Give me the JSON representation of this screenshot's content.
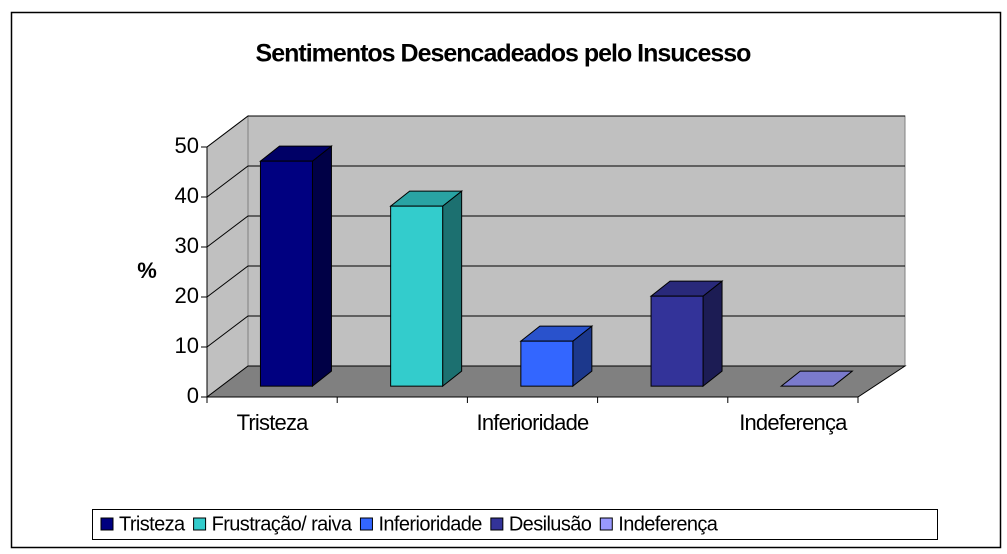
{
  "chart_data": {
    "type": "bar3d",
    "title": "Sentimentos Desencadeados pelo Insucesso",
    "y_label": "%",
    "categories": [
      "Tristeza",
      null,
      "Inferioridade",
      null,
      "Indeferença"
    ],
    "legend": [
      "Tristeza",
      "Frustração/ raiva",
      "Inferioridade",
      "Desilusão",
      "Indeferença"
    ],
    "values": [
      45,
      36,
      9,
      18,
      0
    ],
    "colors": [
      "#000080",
      "#33cccc",
      "#3366ff",
      "#333399",
      "#9999ff"
    ],
    "ylim": [
      0,
      50
    ],
    "yticks": [
      0,
      10,
      20,
      30,
      40,
      50
    ],
    "grid": true
  }
}
